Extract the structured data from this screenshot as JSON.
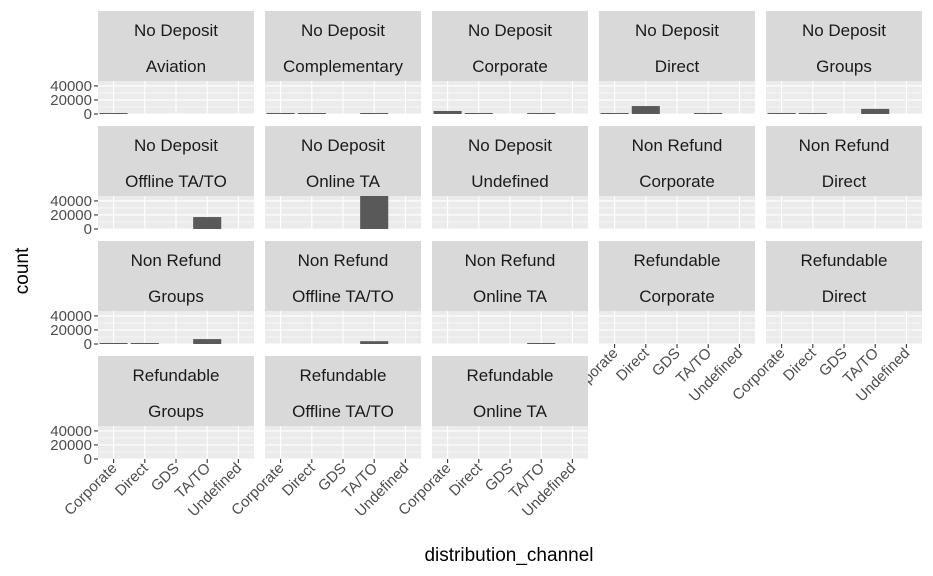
{
  "chart_data": {
    "type": "bar",
    "facet_layout": "wrap",
    "xlabel": "distribution_channel",
    "ylabel": "count",
    "categories": [
      "Corporate",
      "Direct",
      "GDS",
      "TA/TO",
      "Undefined"
    ],
    "y_ticks": [
      0,
      20000,
      40000
    ],
    "y_tick_labels": [
      "0",
      "20000",
      "40000"
    ],
    "ylim": [
      0,
      47000
    ],
    "grid": true,
    "legend": "none",
    "colors": {
      "bar": "#595959",
      "panel": "#ebebeb",
      "strip": "#d9d9d9",
      "grid": "#ffffff"
    },
    "panels": [
      {
        "strip": [
          "No Deposit",
          "Aviation"
        ],
        "values": [
          200,
          0,
          0,
          0,
          0
        ]
      },
      {
        "strip": [
          "No Deposit",
          "Complementary"
        ],
        "values": [
          70,
          400,
          0,
          30,
          0
        ]
      },
      {
        "strip": [
          "No Deposit",
          "Corporate"
        ],
        "values": [
          4300,
          300,
          0,
          300,
          0
        ]
      },
      {
        "strip": [
          "No Deposit",
          "Direct"
        ],
        "values": [
          200,
          11300,
          0,
          200,
          0
        ]
      },
      {
        "strip": [
          "No Deposit",
          "Groups"
        ],
        "values": [
          150,
          800,
          0,
          7300,
          0
        ]
      },
      {
        "strip": [
          "No Deposit",
          "Offline TA/TO"
        ],
        "values": [
          0,
          0,
          0,
          17000,
          0
        ]
      },
      {
        "strip": [
          "No Deposit",
          "Online TA"
        ],
        "values": [
          0,
          0,
          0,
          51000,
          0
        ]
      },
      {
        "strip": [
          "No Deposit",
          "Undefined"
        ],
        "values": [
          0,
          0,
          0,
          0,
          0
        ]
      },
      {
        "strip": [
          "Non Refund",
          "Corporate"
        ],
        "values": [
          0,
          0,
          0,
          0,
          0
        ]
      },
      {
        "strip": [
          "Non Refund",
          "Direct"
        ],
        "values": [
          0,
          0,
          0,
          0,
          0
        ]
      },
      {
        "strip": [
          "Non Refund",
          "Groups"
        ],
        "values": [
          150,
          300,
          0,
          7000,
          0
        ]
      },
      {
        "strip": [
          "Non Refund",
          "Offline TA/TO"
        ],
        "values": [
          0,
          0,
          0,
          4000,
          0
        ]
      },
      {
        "strip": [
          "Non Refund",
          "Online TA"
        ],
        "values": [
          0,
          0,
          0,
          250,
          0
        ]
      },
      {
        "strip": [
          "Refundable",
          "Corporate"
        ],
        "values": [
          0,
          0,
          0,
          0,
          0
        ]
      },
      {
        "strip": [
          "Refundable",
          "Direct"
        ],
        "values": [
          0,
          0,
          0,
          0,
          0
        ]
      },
      {
        "strip": [
          "Refundable",
          "Groups"
        ],
        "values": [
          0,
          0,
          0,
          0,
          0
        ]
      },
      {
        "strip": [
          "Refundable",
          "Offline TA/TO"
        ],
        "values": [
          0,
          0,
          0,
          0,
          0
        ]
      },
      {
        "strip": [
          "Refundable",
          "Online TA"
        ],
        "values": [
          0,
          0,
          0,
          0,
          0
        ]
      }
    ]
  }
}
